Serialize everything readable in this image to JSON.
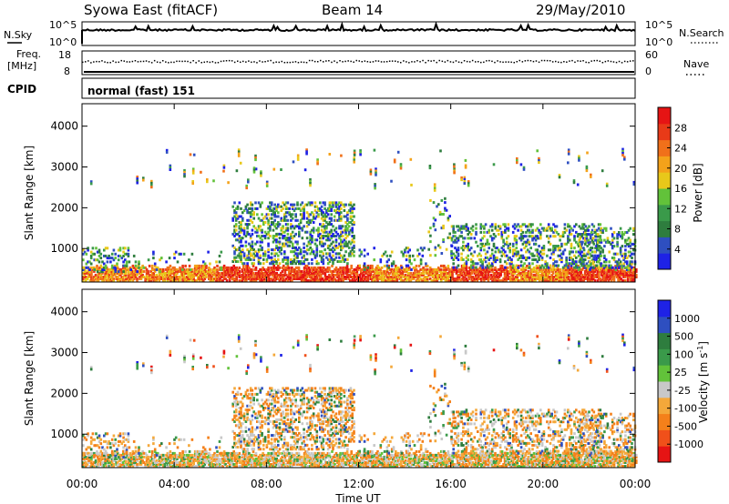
{
  "header": {
    "site": "Syowa East (fitACF)",
    "beam": "Beam 14",
    "date": "29/May/2010"
  },
  "strip_panels": {
    "noise": {
      "left_label": "N.Sky",
      "right_label": "N.Search",
      "left_ticks": [
        "10^5",
        "10^0"
      ],
      "right_ticks": [
        "10^5",
        "10^0"
      ]
    },
    "freq": {
      "left_label_line1": "Freq.",
      "left_label_line2": "[MHz]",
      "right_label": "Nave",
      "left_ticks": [
        "18",
        "8"
      ],
      "right_ticks": [
        "60",
        "0"
      ]
    },
    "cpid": {
      "label": "CPID",
      "text": "normal (fast) 151"
    }
  },
  "colors": {
    "power": [
      "#1e22e6",
      "#2e4fc0",
      "#2e7d3e",
      "#3a9a4a",
      "#62c23a",
      "#e8c81a",
      "#f4a21a",
      "#f0701a",
      "#e83a18",
      "#e61414"
    ],
    "velocity": [
      "#e61414",
      "#f0501a",
      "#f4801a",
      "#f4a83a",
      "#c8c8c8",
      "#62c23a",
      "#3a9a4a",
      "#2e7d3e",
      "#2e4fc0",
      "#1e22e6"
    ]
  },
  "chart_data": [
    {
      "type": "heatmap",
      "name": "power",
      "xlabel": "",
      "ylabel": "Slant Range [km]",
      "x_ticks": [
        "00:00",
        "04:00",
        "08:00",
        "12:00",
        "16:00",
        "20:00",
        "00:00"
      ],
      "x_range_hours": [
        0,
        24
      ],
      "y_ticks": [
        1000,
        2000,
        3000,
        4000
      ],
      "ylim": [
        180,
        4550
      ],
      "colorbar_label": "Power [dB]",
      "colorbar_ticks": [
        "4",
        "8",
        "12",
        "16",
        "20",
        "24",
        "28"
      ],
      "colorbar_range": [
        0,
        32
      ]
    },
    {
      "type": "heatmap",
      "name": "velocity",
      "xlabel": "Time UT",
      "ylabel": "Slant Range [km]",
      "x_ticks": [
        "00:00",
        "04:00",
        "08:00",
        "12:00",
        "16:00",
        "20:00",
        "00:00"
      ],
      "x_range_hours": [
        0,
        24
      ],
      "y_ticks": [
        1000,
        2000,
        3000,
        4000
      ],
      "ylim": [
        180,
        4550
      ],
      "colorbar_label": "Velocity [m s",
      "colorbar_label_sup": "-1",
      "colorbar_label_end": "]",
      "colorbar_ticks": [
        "1000",
        "500",
        "100",
        "25",
        "-25",
        "-100",
        "-500",
        "-1000"
      ]
    }
  ]
}
